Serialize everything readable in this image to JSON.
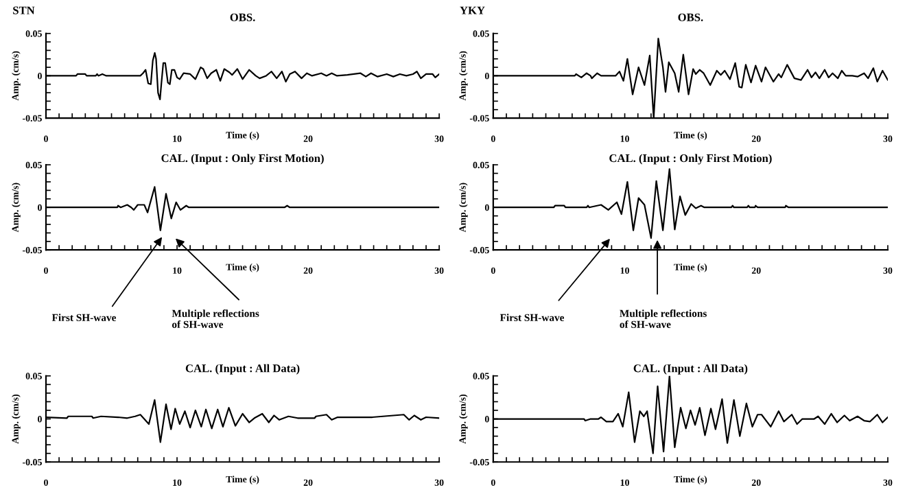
{
  "chart_data": [
    {
      "type": "line",
      "title": "OBS.",
      "xlabel": "Time (s)",
      "ylabel": "Amp. (cm/s)",
      "annotations": [
        "STN"
      ],
      "xlim": [
        0,
        30
      ],
      "ylim": [
        -0.05,
        0.05
      ],
      "xticks": [
        0,
        {
          "value": 1,
          "label": null
        },
        {
          "value": 2,
          "label": null
        },
        {
          "value": 3,
          "label": null
        },
        {
          "value": 4,
          "label": null
        },
        {
          "value": 5,
          "label": null
        },
        {
          "value": 6,
          "label": null
        },
        {
          "value": 7,
          "label": null
        },
        {
          "value": 8,
          "label": null
        },
        {
          "value": 9,
          "label": null
        },
        10,
        {
          "value": 11,
          "label": null
        },
        {
          "value": 12,
          "label": null
        },
        {
          "value": 13,
          "label": null
        },
        {
          "value": 14,
          "label": null
        },
        {
          "value": 15,
          "label": null
        },
        {
          "value": 16,
          "label": null
        },
        {
          "value": 17,
          "label": null
        },
        {
          "value": 18,
          "label": null
        },
        {
          "value": 19,
          "label": null
        },
        20,
        {
          "value": 21,
          "label": null
        },
        {
          "value": 22,
          "label": null
        },
        {
          "value": 23,
          "label": null
        },
        {
          "value": 24,
          "label": null
        },
        {
          "value": 25,
          "label": null
        },
        {
          "value": 26,
          "label": null
        },
        {
          "value": 27,
          "label": null
        },
        {
          "value": 28,
          "label": null
        },
        {
          "value": 29,
          "label": null
        },
        30
      ],
      "yticks": [
        -0.05,
        {
          "value": -0.04,
          "label": null
        },
        {
          "value": -0.03,
          "label": null
        },
        {
          "value": -0.02,
          "label": null
        },
        {
          "value": -0.01,
          "label": null
        },
        0,
        {
          "value": 0.01,
          "label": null
        },
        {
          "value": 0.02,
          "label": null
        },
        {
          "value": 0.03,
          "label": null
        },
        {
          "value": 0.04,
          "label": null
        },
        0.05
      ],
      "series": [
        {
          "color": "#000000",
          "x": [
            0,
            2.3,
            2.4,
            3.0,
            3.1,
            3.8,
            3.9,
            4.0,
            4.3,
            4.6,
            7.2,
            7.4,
            7.6,
            7.8,
            8.0,
            8.15,
            8.3,
            8.4,
            8.55,
            8.7,
            8.8,
            8.95,
            9.1,
            9.3,
            9.45,
            9.6,
            9.8,
            10.0,
            10.2,
            10.5,
            11.0,
            11.4,
            11.8,
            12.0,
            12.3,
            12.6,
            13.0,
            13.3,
            13.6,
            14.0,
            14.2,
            14.6,
            15.0,
            15.5,
            16.0,
            16.3,
            16.8,
            17.2,
            17.6,
            18.0,
            18.3,
            18.6,
            19.0,
            19.5,
            19.9,
            20.3,
            21.0,
            21.4,
            21.8,
            22.2,
            23.0,
            24.0,
            24.4,
            24.8,
            25.3,
            26.0,
            26.5,
            27.0,
            27.5,
            28.0,
            28.3,
            28.6,
            29.0,
            29.5,
            29.7,
            30
          ],
          "values": [
            0,
            0,
            0.002,
            0.002,
            0,
            0,
            0.002,
            0,
            0.002,
            0,
            0,
            0.003,
            0.007,
            -0.009,
            -0.01,
            0.018,
            0.027,
            0.02,
            -0.02,
            -0.028,
            -0.01,
            0.015,
            0.015,
            -0.008,
            -0.01,
            0.007,
            0.007,
            -0.002,
            -0.004,
            0.003,
            0.002,
            -0.004,
            0.01,
            0.008,
            -0.003,
            0.003,
            0.007,
            -0.006,
            0.008,
            0.004,
            0.001,
            0.008,
            -0.004,
            0.007,
            0,
            -0.003,
            0,
            0.005,
            -0.003,
            0.005,
            -0.007,
            0.002,
            0.005,
            -0.003,
            0.003,
            0,
            0.003,
            0,
            0.003,
            0,
            0.001,
            0.003,
            -0.001,
            0.003,
            -0.001,
            0.002,
            -0.001,
            0.002,
            0,
            0.002,
            0.005,
            -0.003,
            0.002,
            0.002,
            -0.002,
            0.002
          ]
        }
      ]
    },
    {
      "type": "line",
      "title": "OBS.",
      "xlabel": "Time (s)",
      "ylabel": "Amp. (cm/s)",
      "annotations": [
        "YKY"
      ],
      "xlim": [
        0,
        30
      ],
      "ylim": [
        -0.05,
        0.05
      ],
      "xticks": [
        0,
        {
          "value": 1,
          "label": null
        },
        {
          "value": 2,
          "label": null
        },
        {
          "value": 3,
          "label": null
        },
        {
          "value": 4,
          "label": null
        },
        {
          "value": 5,
          "label": null
        },
        {
          "value": 6,
          "label": null
        },
        {
          "value": 7,
          "label": null
        },
        {
          "value": 8,
          "label": null
        },
        {
          "value": 9,
          "label": null
        },
        10,
        {
          "value": 11,
          "label": null
        },
        {
          "value": 12,
          "label": null
        },
        {
          "value": 13,
          "label": null
        },
        {
          "value": 14,
          "label": null
        },
        {
          "value": 15,
          "label": null
        },
        {
          "value": 16,
          "label": null
        },
        {
          "value": 17,
          "label": null
        },
        {
          "value": 18,
          "label": null
        },
        {
          "value": 19,
          "label": null
        },
        20,
        {
          "value": 21,
          "label": null
        },
        {
          "value": 22,
          "label": null
        },
        {
          "value": 23,
          "label": null
        },
        {
          "value": 24,
          "label": null
        },
        {
          "value": 25,
          "label": null
        },
        {
          "value": 26,
          "label": null
        },
        {
          "value": 27,
          "label": null
        },
        {
          "value": 28,
          "label": null
        },
        {
          "value": 29,
          "label": null
        },
        30
      ],
      "yticks": [
        -0.05,
        {
          "value": -0.04,
          "label": null
        },
        {
          "value": -0.03,
          "label": null
        },
        {
          "value": -0.02,
          "label": null
        },
        {
          "value": -0.01,
          "label": null
        },
        0,
        {
          "value": 0.01,
          "label": null
        },
        {
          "value": 0.02,
          "label": null
        },
        {
          "value": 0.03,
          "label": null
        },
        {
          "value": 0.04,
          "label": null
        },
        0.05
      ],
      "series": [
        {
          "color": "#000000",
          "x": [
            0,
            6.2,
            6.3,
            6.7,
            7.1,
            7.4,
            7.5,
            7.9,
            8.2,
            9.3,
            9.6,
            9.9,
            10.2,
            10.6,
            11.05,
            11.5,
            11.9,
            12.2,
            12.55,
            12.9,
            13.1,
            13.35,
            13.8,
            14.1,
            14.45,
            14.85,
            15.2,
            15.4,
            15.7,
            16.0,
            16.5,
            17.0,
            17.3,
            17.6,
            18.0,
            18.4,
            18.7,
            18.9,
            19.2,
            19.6,
            19.95,
            20.4,
            20.7,
            21.3,
            21.7,
            21.9,
            22.35,
            22.9,
            23.4,
            23.9,
            24.2,
            24.5,
            24.8,
            25.2,
            25.5,
            25.8,
            26.2,
            26.5,
            26.8,
            27.3,
            27.7,
            28.2,
            28.5,
            28.9,
            29.2,
            29.6,
            30
          ],
          "values": [
            0,
            0,
            0.002,
            -0.002,
            0.003,
            0,
            -0.003,
            0.003,
            0,
            0,
            0.005,
            -0.006,
            0.02,
            -0.022,
            0.01,
            -0.011,
            0.024,
            -0.05,
            0.044,
            0.01,
            -0.019,
            0.016,
            0.003,
            -0.019,
            0.025,
            -0.022,
            0.008,
            0.002,
            0.007,
            0.003,
            -0.011,
            0.006,
            0.001,
            0.006,
            -0.004,
            0.015,
            -0.013,
            -0.014,
            0.013,
            -0.008,
            0.012,
            -0.007,
            0.01,
            -0.007,
            0.002,
            -0.002,
            0.013,
            -0.003,
            -0.005,
            0.007,
            -0.002,
            0.004,
            -0.003,
            0.007,
            -0.002,
            0.003,
            -0.003,
            0.006,
            0,
            0,
            -0.001,
            0.003,
            -0.003,
            0.009,
            -0.007,
            0.006,
            -0.005
          ]
        }
      ]
    },
    {
      "type": "line",
      "title": "CAL. (Input : Only First Motion)",
      "xlabel": "Time (s)",
      "ylabel": "Amp. (cm/s)",
      "annotations": [
        "First SH-wave",
        "Multiple reflections\nof SH-wave"
      ],
      "xlim": [
        0,
        30
      ],
      "ylim": [
        -0.05,
        0.05
      ],
      "xticks": [
        0,
        {
          "value": 1,
          "label": null
        },
        {
          "value": 2,
          "label": null
        },
        {
          "value": 3,
          "label": null
        },
        {
          "value": 4,
          "label": null
        },
        {
          "value": 5,
          "label": null
        },
        {
          "value": 6,
          "label": null
        },
        {
          "value": 7,
          "label": null
        },
        {
          "value": 8,
          "label": null
        },
        {
          "value": 9,
          "label": null
        },
        10,
        {
          "value": 11,
          "label": null
        },
        {
          "value": 12,
          "label": null
        },
        {
          "value": 13,
          "label": null
        },
        {
          "value": 14,
          "label": null
        },
        {
          "value": 15,
          "label": null
        },
        {
          "value": 16,
          "label": null
        },
        {
          "value": 17,
          "label": null
        },
        {
          "value": 18,
          "label": null
        },
        {
          "value": 19,
          "label": null
        },
        20,
        {
          "value": 21,
          "label": null
        },
        {
          "value": 22,
          "label": null
        },
        {
          "value": 23,
          "label": null
        },
        {
          "value": 24,
          "label": null
        },
        {
          "value": 25,
          "label": null
        },
        {
          "value": 26,
          "label": null
        },
        {
          "value": 27,
          "label": null
        },
        {
          "value": 28,
          "label": null
        },
        {
          "value": 29,
          "label": null
        },
        30
      ],
      "yticks": [
        -0.05,
        {
          "value": -0.04,
          "label": null
        },
        {
          "value": -0.03,
          "label": null
        },
        {
          "value": -0.02,
          "label": null
        },
        {
          "value": -0.01,
          "label": null
        },
        0,
        {
          "value": 0.01,
          "label": null
        },
        {
          "value": 0.02,
          "label": null
        },
        {
          "value": 0.03,
          "label": null
        },
        {
          "value": 0.04,
          "label": null
        },
        0.05
      ],
      "series": [
        {
          "color": "#000000",
          "x": [
            0,
            5.45,
            5.5,
            5.7,
            6.2,
            6.5,
            6.7,
            7.0,
            7.5,
            7.75,
            8.29,
            8.73,
            9.16,
            9.56,
            9.93,
            10.26,
            10.7,
            10.9,
            18.2,
            18.4,
            18.6,
            30
          ],
          "values": [
            0,
            0,
            0.002,
            0,
            0.003,
            0,
            -0.003,
            0.003,
            0.003,
            -0.006,
            0.024,
            -0.027,
            0.016,
            -0.013,
            0.006,
            -0.003,
            0.002,
            0,
            0,
            0.002,
            0,
            0
          ]
        }
      ]
    },
    {
      "type": "line",
      "title": "CAL. (Input : Only First Motion)",
      "xlabel": "Time (s)",
      "ylabel": "Amp. (cm/s)",
      "annotations": [
        "First SH-wave",
        "Multiple reflections\nof SH-wave"
      ],
      "xlim": [
        0,
        30
      ],
      "ylim": [
        -0.05,
        0.05
      ],
      "xticks": [
        0,
        {
          "value": 1,
          "label": null
        },
        {
          "value": 2,
          "label": null
        },
        {
          "value": 3,
          "label": null
        },
        {
          "value": 4,
          "label": null
        },
        {
          "value": 5,
          "label": null
        },
        {
          "value": 6,
          "label": null
        },
        {
          "value": 7,
          "label": null
        },
        {
          "value": 8,
          "label": null
        },
        {
          "value": 9,
          "label": null
        },
        10,
        {
          "value": 11,
          "label": null
        },
        {
          "value": 12,
          "label": null
        },
        {
          "value": 13,
          "label": null
        },
        {
          "value": 14,
          "label": null
        },
        {
          "value": 15,
          "label": null
        },
        {
          "value": 16,
          "label": null
        },
        {
          "value": 17,
          "label": null
        },
        {
          "value": 18,
          "label": null
        },
        {
          "value": 19,
          "label": null
        },
        20,
        {
          "value": 21,
          "label": null
        },
        {
          "value": 22,
          "label": null
        },
        {
          "value": 23,
          "label": null
        },
        {
          "value": 24,
          "label": null
        },
        {
          "value": 25,
          "label": null
        },
        {
          "value": 26,
          "label": null
        },
        {
          "value": 27,
          "label": null
        },
        {
          "value": 28,
          "label": null
        },
        {
          "value": 29,
          "label": null
        },
        30
      ],
      "yticks": [
        -0.05,
        {
          "value": -0.04,
          "label": null
        },
        {
          "value": -0.03,
          "label": null
        },
        {
          "value": -0.02,
          "label": null
        },
        {
          "value": -0.01,
          "label": null
        },
        0,
        {
          "value": 0.01,
          "label": null
        },
        {
          "value": 0.02,
          "label": null
        },
        {
          "value": 0.03,
          "label": null
        },
        {
          "value": 0.04,
          "label": null
        },
        0.05
      ],
      "series": [
        {
          "color": "#000000",
          "x": [
            0,
            4.6,
            4.7,
            5.4,
            5.5,
            7.1,
            7.2,
            7.3,
            8.2,
            8.75,
            9.4,
            9.75,
            10.2,
            10.65,
            11.05,
            11.5,
            12.0,
            12.4,
            12.9,
            13.4,
            13.8,
            14.2,
            14.6,
            15.05,
            15.4,
            15.8,
            16.05,
            18.1,
            18.2,
            18.3,
            19.3,
            19.4,
            19.5,
            19.9,
            19.95,
            20.1,
            22.2,
            22.25,
            22.45,
            30
          ],
          "values": [
            0,
            0,
            0.002,
            0.002,
            0,
            0,
            0.002,
            0,
            0.003,
            -0.003,
            0.006,
            -0.008,
            0.03,
            -0.027,
            0.011,
            0.003,
            -0.036,
            0.031,
            -0.027,
            0.045,
            -0.026,
            0.013,
            -0.009,
            0.004,
            -0.001,
            0.002,
            0,
            0,
            0.002,
            0,
            0,
            0.002,
            0,
            0,
            0.002,
            0,
            0,
            0.002,
            0,
            0
          ]
        }
      ]
    },
    {
      "type": "line",
      "title": "CAL. (Input : All Data)",
      "xlabel": "Time (s)",
      "ylabel": "Amp. (cm/s)",
      "xlim": [
        0,
        30
      ],
      "ylim": [
        -0.05,
        0.05
      ],
      "xticks": [
        0,
        {
          "value": 1,
          "label": null
        },
        {
          "value": 2,
          "label": null
        },
        {
          "value": 3,
          "label": null
        },
        {
          "value": 4,
          "label": null
        },
        {
          "value": 5,
          "label": null
        },
        {
          "value": 6,
          "label": null
        },
        {
          "value": 7,
          "label": null
        },
        {
          "value": 8,
          "label": null
        },
        {
          "value": 9,
          "label": null
        },
        10,
        {
          "value": 11,
          "label": null
        },
        {
          "value": 12,
          "label": null
        },
        {
          "value": 13,
          "label": null
        },
        {
          "value": 14,
          "label": null
        },
        {
          "value": 15,
          "label": null
        },
        {
          "value": 16,
          "label": null
        },
        {
          "value": 17,
          "label": null
        },
        {
          "value": 18,
          "label": null
        },
        {
          "value": 19,
          "label": null
        },
        20,
        {
          "value": 21,
          "label": null
        },
        {
          "value": 22,
          "label": null
        },
        {
          "value": 23,
          "label": null
        },
        {
          "value": 24,
          "label": null
        },
        {
          "value": 25,
          "label": null
        },
        {
          "value": 26,
          "label": null
        },
        {
          "value": 27,
          "label": null
        },
        {
          "value": 28,
          "label": null
        },
        {
          "value": 29,
          "label": null
        },
        30
      ],
      "yticks": [
        -0.05,
        {
          "value": -0.04,
          "label": null
        },
        {
          "value": -0.03,
          "label": null
        },
        {
          "value": -0.02,
          "label": null
        },
        {
          "value": -0.01,
          "label": null
        },
        0,
        {
          "value": 0.01,
          "label": null
        },
        {
          "value": 0.02,
          "label": null
        },
        {
          "value": 0.03,
          "label": null
        },
        {
          "value": 0.04,
          "label": null
        },
        0.05
      ],
      "series": [
        {
          "color": "#000000",
          "x": [
            0,
            1.6,
            1.7,
            3.5,
            3.6,
            4.2,
            5.5,
            6.2,
            6.8,
            7.2,
            7.85,
            8.29,
            8.73,
            9.16,
            9.54,
            9.86,
            10.2,
            10.6,
            11.0,
            11.4,
            11.85,
            12.2,
            12.65,
            13.1,
            13.5,
            13.95,
            14.45,
            15.0,
            15.5,
            15.9,
            16.5,
            17.0,
            17.4,
            17.8,
            18.5,
            19.2,
            20.5,
            20.6,
            21.4,
            21.8,
            22.25,
            24.9,
            27.3,
            27.7,
            28.1,
            28.6,
            29.0,
            30
          ],
          "values": [
            0.002,
            0.001,
            0.003,
            0.003,
            0.001,
            0.003,
            0.002,
            0.001,
            0.003,
            0.005,
            -0.006,
            0.022,
            -0.027,
            0.017,
            -0.012,
            0.012,
            -0.006,
            0.009,
            -0.01,
            0.01,
            -0.009,
            0.011,
            -0.011,
            0.011,
            -0.009,
            0.013,
            -0.008,
            0.006,
            -0.004,
            0.001,
            0.006,
            -0.004,
            0.004,
            -0.001,
            0.003,
            0.001,
            0.001,
            0.003,
            0.005,
            -0.001,
            0.002,
            0.002,
            0.005,
            -0.001,
            0.004,
            -0.001,
            0.002,
            0.001
          ]
        }
      ]
    },
    {
      "type": "line",
      "title": "CAL. (Input : All Data)",
      "xlabel": "Time (s)",
      "ylabel": "Amp. (cm/s)",
      "xlim": [
        0,
        30
      ],
      "ylim": [
        -0.05,
        0.05
      ],
      "xticks": [
        0,
        {
          "value": 1,
          "label": null
        },
        {
          "value": 2,
          "label": null
        },
        {
          "value": 3,
          "label": null
        },
        {
          "value": 4,
          "label": null
        },
        {
          "value": 5,
          "label": null
        },
        {
          "value": 6,
          "label": null
        },
        {
          "value": 7,
          "label": null
        },
        {
          "value": 8,
          "label": null
        },
        {
          "value": 9,
          "label": null
        },
        10,
        {
          "value": 11,
          "label": null
        },
        {
          "value": 12,
          "label": null
        },
        {
          "value": 13,
          "label": null
        },
        {
          "value": 14,
          "label": null
        },
        {
          "value": 15,
          "label": null
        },
        {
          "value": 16,
          "label": null
        },
        {
          "value": 17,
          "label": null
        },
        {
          "value": 18,
          "label": null
        },
        {
          "value": 19,
          "label": null
        },
        20,
        {
          "value": 21,
          "label": null
        },
        {
          "value": 22,
          "label": null
        },
        {
          "value": 23,
          "label": null
        },
        {
          "value": 24,
          "label": null
        },
        {
          "value": 25,
          "label": null
        },
        {
          "value": 26,
          "label": null
        },
        {
          "value": 27,
          "label": null
        },
        {
          "value": 28,
          "label": null
        },
        {
          "value": 29,
          "label": null
        },
        30
      ],
      "yticks": [
        -0.05,
        {
          "value": -0.04,
          "label": null
        },
        {
          "value": -0.03,
          "label": null
        },
        {
          "value": -0.02,
          "label": null
        },
        {
          "value": -0.01,
          "label": null
        },
        0,
        {
          "value": 0.01,
          "label": null
        },
        {
          "value": 0.02,
          "label": null
        },
        {
          "value": 0.03,
          "label": null
        },
        {
          "value": 0.04,
          "label": null
        },
        0.05
      ],
      "series": [
        {
          "color": "#000000",
          "x": [
            0,
            6.9,
            7.0,
            7.4,
            8.0,
            8.2,
            8.6,
            9.1,
            9.5,
            9.85,
            10.3,
            10.75,
            11.15,
            11.45,
            11.7,
            12.15,
            12.5,
            12.95,
            13.4,
            13.8,
            14.25,
            14.65,
            15.0,
            15.35,
            15.7,
            16.1,
            16.55,
            16.9,
            17.4,
            17.8,
            18.3,
            18.75,
            19.25,
            19.7,
            20.1,
            20.4,
            21.1,
            21.7,
            22.1,
            22.7,
            23.1,
            23.5,
            24.4,
            24.7,
            25.2,
            25.7,
            26.15,
            26.7,
            27.1,
            27.7,
            28.2,
            28.65,
            29.2,
            29.6,
            30
          ],
          "values": [
            0,
            0,
            -0.002,
            0,
            0,
            0.002,
            -0.003,
            -0.003,
            0.006,
            -0.009,
            0.031,
            -0.027,
            0.009,
            0.003,
            0.009,
            -0.04,
            0.038,
            -0.038,
            0.05,
            -0.033,
            0.013,
            -0.011,
            0.01,
            -0.007,
            0.013,
            -0.019,
            0.012,
            -0.012,
            0.023,
            -0.028,
            0.022,
            -0.02,
            0.018,
            -0.009,
            0.005,
            0.005,
            -0.009,
            0.009,
            -0.003,
            0.005,
            -0.006,
            0,
            0,
            0.003,
            -0.006,
            0.006,
            -0.004,
            0.004,
            -0.002,
            0.003,
            -0.002,
            -0.003,
            0.005,
            -0.004,
            0.002
          ]
        }
      ]
    }
  ]
}
